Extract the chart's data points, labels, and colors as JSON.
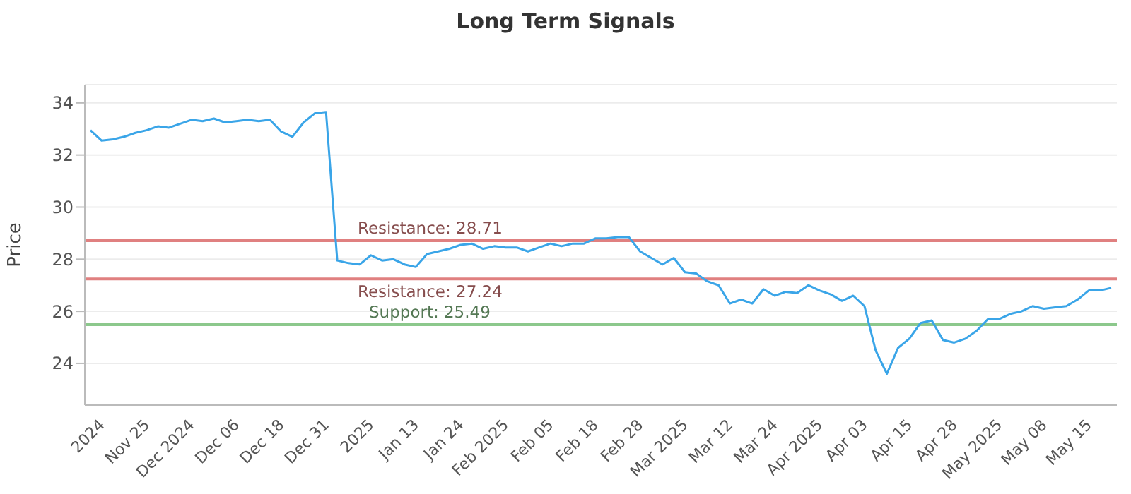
{
  "chart_data": {
    "type": "line",
    "title": "Long Term Signals",
    "ylabel": "Price",
    "categories": [
      null,
      "2024",
      null,
      null,
      null,
      "Nov 25",
      null,
      null,
      null,
      "Dec 2024",
      null,
      null,
      null,
      "Dec 06",
      null,
      null,
      null,
      "Dec 18",
      null,
      null,
      null,
      "Dec 31",
      null,
      null,
      null,
      "2025",
      null,
      null,
      null,
      "Jan 13",
      null,
      null,
      null,
      "Jan 24",
      null,
      null,
      null,
      "Feb 2025",
      null,
      null,
      null,
      "Feb 05",
      null,
      null,
      null,
      "Feb 18",
      null,
      null,
      null,
      "Feb 28",
      null,
      null,
      null,
      "Mar 2025",
      null,
      null,
      null,
      "Mar 12",
      null,
      null,
      null,
      "Mar 24",
      null,
      null,
      null,
      "Apr 2025",
      null,
      null,
      null,
      "Apr 03",
      null,
      null,
      null,
      "Apr 15",
      null,
      null,
      null,
      "Apr 28",
      null,
      null,
      null,
      "May 2025",
      null,
      null,
      null,
      "May 08",
      null,
      null,
      null,
      "May 15",
      null,
      null
    ],
    "series": [
      {
        "color": "#3aa5e8",
        "values": [
          32.95,
          32.55,
          32.6,
          32.7,
          32.85,
          32.95,
          33.1,
          33.05,
          33.2,
          33.35,
          33.3,
          33.4,
          33.25,
          33.3,
          33.35,
          33.3,
          33.35,
          32.9,
          32.7,
          33.25,
          33.6,
          33.65,
          27.95,
          27.85,
          27.8,
          28.15,
          27.95,
          28.0,
          27.8,
          27.7,
          28.2,
          28.3,
          28.4,
          28.55,
          28.6,
          28.4,
          28.5,
          28.45,
          28.45,
          28.3,
          28.45,
          28.6,
          28.5,
          28.6,
          28.6,
          28.8,
          28.8,
          28.85,
          28.85,
          28.3,
          28.05,
          27.8,
          28.05,
          27.5,
          27.45,
          27.15,
          27.0,
          26.3,
          26.45,
          26.3,
          26.85,
          26.6,
          26.75,
          26.7,
          27.0,
          26.8,
          26.65,
          26.4,
          26.6,
          26.2,
          24.5,
          23.6,
          24.6,
          24.95,
          25.55,
          25.65,
          24.9,
          24.8,
          24.95,
          25.25,
          25.7,
          25.7,
          25.9,
          26.0,
          26.2,
          26.1,
          26.15,
          26.2,
          26.45,
          26.8,
          26.8,
          26.9
        ]
      }
    ],
    "ylim": [
      22.4,
      34.7
    ],
    "yticks": [
      24,
      26,
      28,
      30,
      32,
      34
    ],
    "grid": "y",
    "marker": "none",
    "line_style": "solid",
    "legend": false,
    "ref_lines": [
      {
        "axis": "y",
        "value": 28.71,
        "label": "Resistance: 28.71",
        "color": "#e08080"
      },
      {
        "axis": "y",
        "value": 27.24,
        "label": "Resistance: 27.24",
        "color": "#e08080"
      },
      {
        "axis": "y",
        "value": 25.49,
        "label": "Support: 25.49",
        "color": "#8cc88c"
      }
    ]
  }
}
